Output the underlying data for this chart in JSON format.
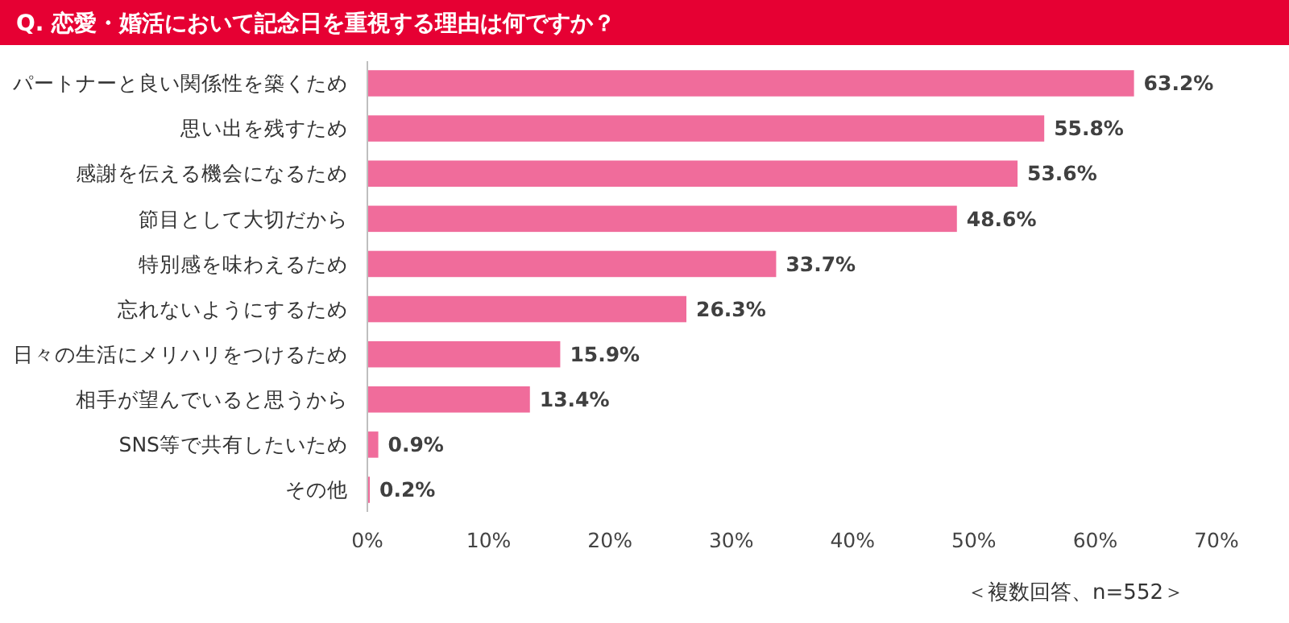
{
  "chart_data": {
    "type": "bar",
    "orientation": "horizontal",
    "title": "Q. 恋愛・婚活において記念日を重視する理由は何ですか？",
    "categories": [
      "パートナーと良い関係性を築くため",
      "思い出を残すため",
      "感謝を伝える機会になるため",
      "節目として大切だから",
      "特別感を味わえるため",
      "忘れないようにするため",
      "日々の生活にメリハリをつけるため",
      "相手が望んでいると思うから",
      "SNS等で共有したいため",
      "その他"
    ],
    "values": [
      63.2,
      55.8,
      53.6,
      48.6,
      33.7,
      26.3,
      15.9,
      13.4,
      0.9,
      0.2
    ],
    "value_labels": [
      "63.2%",
      "55.8%",
      "53.6%",
      "48.6%",
      "33.7%",
      "26.3%",
      "15.9%",
      "13.4%",
      "0.9%",
      "0.2%"
    ],
    "color": "#f06c9b",
    "xlim": [
      0,
      70
    ],
    "xticks": [
      {
        "value": 0,
        "label": "0%"
      },
      {
        "value": 10,
        "label": "10%"
      },
      {
        "value": 20,
        "label": "20%"
      },
      {
        "value": 30,
        "label": "30%"
      },
      {
        "value": 40,
        "label": "40%"
      },
      {
        "value": 50,
        "label": "50%"
      },
      {
        "value": 60,
        "label": "60%"
      },
      {
        "value": 70,
        "label": "70%"
      }
    ],
    "annotations": [
      "＜複数回答、n=552＞"
    ]
  }
}
